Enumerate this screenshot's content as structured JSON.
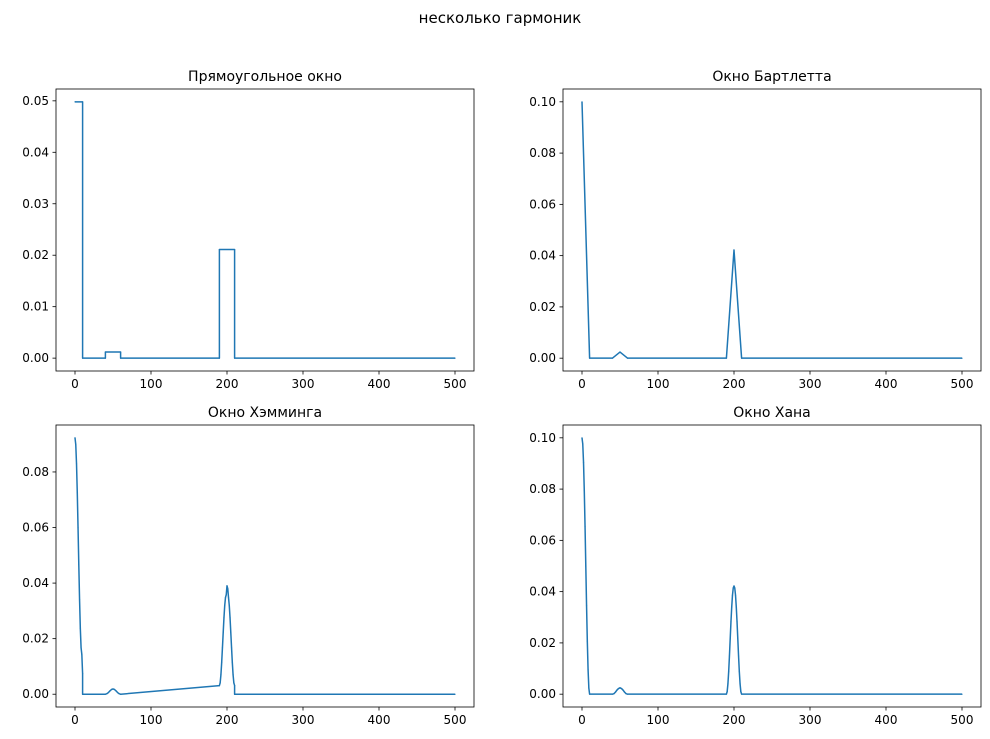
{
  "figure": {
    "suptitle": "несколько гармоник",
    "line_color": "#1f77b4"
  },
  "chart_data": [
    {
      "type": "line",
      "title": "Прямоугольное окно",
      "xlabel": "",
      "ylabel": "",
      "xlim": [
        -25,
        525
      ],
      "ylim": [
        -0.0025,
        0.0523
      ],
      "xticks": [
        0,
        100,
        200,
        300,
        400,
        500
      ],
      "xtick_labels": [
        "0",
        "100",
        "200",
        "300",
        "400",
        "500"
      ],
      "yticks": [
        0,
        0.01,
        0.02,
        0.03,
        0.04,
        0.05
      ],
      "ytick_labels": [
        "0.00",
        "0.01",
        "0.02",
        "0.03",
        "0.04",
        "0.05"
      ],
      "grid": false,
      "series": [
        {
          "x": [
            0,
            10,
            10,
            40,
            40,
            60,
            60,
            190,
            190,
            210,
            210,
            500
          ],
          "y": [
            0.0498,
            0.0498,
            0,
            0,
            0.0012,
            0.0012,
            0,
            0,
            0.0211,
            0.0211,
            0,
            0
          ]
        }
      ]
    },
    {
      "type": "line",
      "title": "Окно Бартлетта",
      "xlabel": "",
      "ylabel": "",
      "xlim": [
        -25,
        525
      ],
      "ylim": [
        -0.005,
        0.105
      ],
      "xticks": [
        0,
        100,
        200,
        300,
        400,
        500
      ],
      "xtick_labels": [
        "0",
        "100",
        "200",
        "300",
        "400",
        "500"
      ],
      "yticks": [
        0,
        0.02,
        0.04,
        0.06,
        0.08,
        0.1
      ],
      "ytick_labels": [
        "0.00",
        "0.02",
        "0.04",
        "0.06",
        "0.08",
        "0.10"
      ],
      "grid": false,
      "series": [
        {
          "x": [
            0,
            10,
            40,
            50,
            60,
            190,
            200,
            210,
            500
          ],
          "y": [
            0.1,
            0,
            0,
            0.0024,
            0,
            0,
            0.0422,
            0,
            0
          ]
        }
      ]
    },
    {
      "type": "line",
      "title": "Окно Хэмминга",
      "xlabel": "",
      "ylabel": "",
      "xlim": [
        -25,
        525
      ],
      "ylim": [
        -0.0046,
        0.0969
      ],
      "xticks": [
        0,
        100,
        200,
        300,
        400,
        500
      ],
      "xtick_labels": [
        "0",
        "100",
        "200",
        "300",
        "400",
        "500"
      ],
      "yticks": [
        0,
        0.02,
        0.04,
        0.06,
        0.08
      ],
      "ytick_labels": [
        "0.00",
        "0.02",
        "0.04",
        "0.06",
        "0.08"
      ],
      "grid": false,
      "series": [
        {
          "x": [
            0,
            1,
            2,
            3,
            4,
            5,
            6,
            7,
            8,
            9,
            10,
            10,
            40,
            42,
            44,
            46,
            48,
            50,
            52,
            54,
            56,
            58,
            60,
            60,
            190,
            190,
            191,
            192,
            193,
            194,
            195,
            196,
            197,
            198,
            199,
            200,
            201,
            202,
            203,
            204,
            205,
            206,
            207,
            208,
            209,
            210,
            210,
            500
          ],
          "y": [
            0.0923,
            0.0899,
            0.0829,
            0.0725,
            0.0599,
            0.0466,
            0.0341,
            0.0237,
            0.0167,
            0.0143,
            0.0074,
            0,
            0,
            0.0002,
            0.0006,
            0.0012,
            0.0017,
            0.0019,
            0.0017,
            0.0012,
            0.0006,
            0.0002,
            0,
            0,
            0.0031,
            0.0031,
            0.0041,
            0.007,
            0.0114,
            0.0167,
            0.0222,
            0.0275,
            0.0319,
            0.0348,
            0.0358,
            0.039,
            0.038,
            0.0348,
            0.0319,
            0.0275,
            0.0222,
            0.0167,
            0.0114,
            0.007,
            0.0041,
            0.0031,
            0,
            0
          ]
        }
      ]
    },
    {
      "type": "line",
      "title": "Окно Хана",
      "xlabel": "",
      "ylabel": "",
      "xlim": [
        -25,
        525
      ],
      "ylim": [
        -0.005,
        0.105
      ],
      "xticks": [
        0,
        100,
        200,
        300,
        400,
        500
      ],
      "xtick_labels": [
        "0",
        "100",
        "200",
        "300",
        "400",
        "500"
      ],
      "yticks": [
        0,
        0.02,
        0.04,
        0.06,
        0.08,
        0.1
      ],
      "ytick_labels": [
        "0.00",
        "0.02",
        "0.04",
        "0.06",
        "0.08",
        "0.10"
      ],
      "grid": false,
      "series": [
        {
          "x": [
            0,
            1,
            2,
            3,
            4,
            5,
            6,
            7,
            8,
            9,
            10,
            40,
            42,
            44,
            46,
            48,
            50,
            52,
            54,
            56,
            58,
            60,
            190,
            191,
            192,
            193,
            194,
            195,
            196,
            197,
            198,
            199,
            200,
            201,
            202,
            203,
            204,
            205,
            206,
            207,
            208,
            209,
            210,
            500
          ],
          "y": [
            0.1,
            0.0976,
            0.0905,
            0.0794,
            0.0655,
            0.05,
            0.0345,
            0.0206,
            0.0095,
            0.0024,
            0,
            0,
            0.0002,
            0.0008,
            0.0016,
            0.0022,
            0.0025,
            0.0022,
            0.0016,
            0.0008,
            0.0002,
            0,
            0,
            0.001,
            0.004,
            0.0088,
            0.0149,
            0.0216,
            0.0282,
            0.034,
            0.0386,
            0.0414,
            0.0422,
            0.0414,
            0.0386,
            0.034,
            0.0282,
            0.0216,
            0.0149,
            0.0088,
            0.004,
            0.001,
            0,
            0
          ]
        }
      ]
    }
  ]
}
